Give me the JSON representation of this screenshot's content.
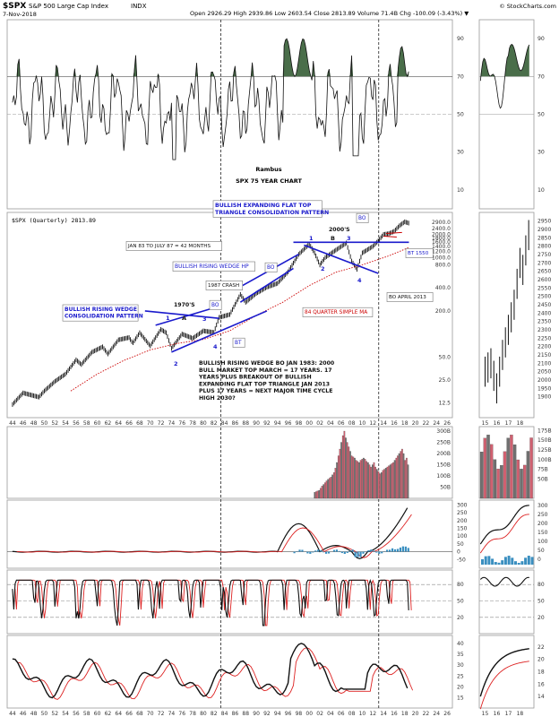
{
  "header": {
    "symbol": "$SPX",
    "name": "S&P 500 Large Cap Index",
    "exchange": "INDX",
    "date": "7-Nov-2018",
    "ohlc": "Open 2926.29  High 2939.86  Low 2603.54  Close 2813.89  Volume 71.4B  Chg -100.09 (-3.43%) ▼",
    "copyright": "© StockCharts.com"
  },
  "labels": {
    "author": "Rambus",
    "chart_title": "SPX 75 YEAR CHART",
    "price_legend": "$SPX (Quarterly) 2813.89",
    "triangle_title": "BULLISH EXPANDING FLAT TOP\nTRIANGLE CONSOLIDATION PATTERN",
    "wedge1_title": "BULLISH RISING WEDGE\nCONSOLIDATION PATTERN",
    "wedge2_title": "BULLISH RISING WEDGE HP",
    "jan83": "JAN 83 TO JULY 87 = 42 MONTHS",
    "crash": "1987 CRASH",
    "seventies": "1970'S",
    "twothousands": "2000'S",
    "bo_april": "BO APRIL 2013",
    "bt1550": "BT 1550",
    "ma_label": "84 QUARTER SIMPLE MA",
    "bo": "BO",
    "bt": "BT",
    "pt1": "1",
    "pt2": "2",
    "pt3": "3",
    "pt4": "4",
    "ptA": "A",
    "ptB": "B",
    "commentary": "BULLISH RISING WEDGE BO JAN 1983:  2000\nBULL MARKET TOP MARCH = 17 YEARS.  17\nYEARS PLUS BREAKOUT OF BULLISH\nEXPANDING FLAT TOP TRIANGLE  JAN 2013\nPLUS 17 YEARS = NEXT MAJOR TIME CYCLE\nHIGH 2030?"
  },
  "colors": {
    "price": "#111111",
    "ma": "#cc0000",
    "trendline": "#1a1acc",
    "rsi_fill": "#4a6e4a",
    "vol_red": "#d06070",
    "vol_grey": "#707070",
    "hist": "#3a8fc0",
    "signal": "#dd2222"
  },
  "chart_data": [
    {
      "type": "line",
      "name": "rsi",
      "yticks": [
        "90",
        "70",
        "50",
        "30",
        "10"
      ],
      "ylim": [
        0,
        100
      ]
    },
    {
      "type": "line",
      "name": "price",
      "scale": "log",
      "xticks": [
        "44",
        "46",
        "48",
        "50",
        "52",
        "54",
        "56",
        "58",
        "60",
        "62",
        "64",
        "66",
        "68",
        "70",
        "72",
        "74",
        "76",
        "78",
        "80",
        "82",
        "84",
        "86",
        "88",
        "90",
        "92",
        "94",
        "96",
        "98",
        "00",
        "02",
        "04",
        "06",
        "08",
        "10",
        "12",
        "14",
        "16",
        "18",
        "20",
        "22",
        "24",
        "26"
      ],
      "yticks": [
        "2900.0",
        "2400.0",
        "2000.0",
        "1800.0",
        "1600.0",
        "1400.0",
        "1200.0",
        "1000.0",
        "800.0",
        "400.0",
        "200.0",
        "50.0",
        "25.0",
        "12.5"
      ],
      "points": [
        [
          1944,
          12
        ],
        [
          1946,
          17
        ],
        [
          1949,
          15
        ],
        [
          1950,
          18
        ],
        [
          1952,
          24
        ],
        [
          1954,
          30
        ],
        [
          1956,
          46
        ],
        [
          1957,
          40
        ],
        [
          1959,
          58
        ],
        [
          1961,
          68
        ],
        [
          1962,
          55
        ],
        [
          1964,
          84
        ],
        [
          1966,
          90
        ],
        [
          1966.7,
          76
        ],
        [
          1968,
          104
        ],
        [
          1970,
          70
        ],
        [
          1972,
          115
        ],
        [
          1973,
          104
        ],
        [
          1974,
          65
        ],
        [
          1976,
          100
        ],
        [
          1978,
          88
        ],
        [
          1980,
          110
        ],
        [
          1982,
          105
        ],
        [
          1983,
          165
        ],
        [
          1985,
          180
        ],
        [
          1987,
          330
        ],
        [
          1988,
          260
        ],
        [
          1990,
          340
        ],
        [
          1992,
          410
        ],
        [
          1994,
          460
        ],
        [
          1996,
          650
        ],
        [
          1998,
          1100
        ],
        [
          2000,
          1500
        ],
        [
          2001,
          1150
        ],
        [
          2002,
          800
        ],
        [
          2003,
          1000
        ],
        [
          2005,
          1250
        ],
        [
          2007,
          1550
        ],
        [
          2008,
          900
        ],
        [
          2009,
          700
        ],
        [
          2010,
          1150
        ],
        [
          2012,
          1400
        ],
        [
          2013,
          1650
        ],
        [
          2014,
          2000
        ],
        [
          2015,
          2050
        ],
        [
          2016,
          2200
        ],
        [
          2017,
          2600
        ],
        [
          2018,
          2930
        ],
        [
          2018.8,
          2813
        ]
      ],
      "ma84": [
        [
          1955,
          18
        ],
        [
          1960,
          30
        ],
        [
          1965,
          45
        ],
        [
          1970,
          62
        ],
        [
          1975,
          75
        ],
        [
          1980,
          85
        ],
        [
          1985,
          110
        ],
        [
          1990,
          175
        ],
        [
          1995,
          260
        ],
        [
          2000,
          430
        ],
        [
          2005,
          640
        ],
        [
          2010,
          800
        ],
        [
          2015,
          1050
        ],
        [
          2018.8,
          1350
        ]
      ]
    },
    {
      "type": "line",
      "name": "price-zoom",
      "xticks": [
        "15",
        "16",
        "17",
        "18"
      ],
      "yticks": [
        "2950",
        "2900",
        "2850",
        "2800",
        "2750",
        "2700",
        "2650",
        "2600",
        "2550",
        "2500",
        "2450",
        "2400",
        "2350",
        "2300",
        "2250",
        "2200",
        "2150",
        "2100",
        "2050",
        "2000",
        "1950",
        "1900"
      ],
      "ylim": [
        1850,
        2970
      ]
    },
    {
      "type": "bar",
      "name": "volume",
      "yticks": [
        "300B",
        "250B",
        "200B",
        "150B",
        "100B",
        "50B"
      ],
      "zoom_yticks": [
        "175B",
        "150B",
        "125B",
        "100B",
        "75B",
        "50B"
      ],
      "values": [
        27,
        30,
        33,
        36,
        45,
        55,
        62,
        70,
        78,
        85,
        90,
        95,
        105,
        115,
        135,
        160,
        190,
        220,
        250,
        280,
        300,
        270,
        250,
        230,
        210,
        190,
        185,
        180,
        170,
        165,
        160,
        170,
        175,
        180,
        175,
        165,
        160,
        150,
        140,
        150,
        160,
        140,
        130,
        120,
        110,
        115,
        125,
        130,
        135,
        140,
        145,
        150,
        155,
        160,
        170,
        180,
        190,
        200,
        210,
        220,
        200,
        170,
        180,
        150
      ]
    },
    {
      "type": "line",
      "name": "macd",
      "yticks": [
        "300",
        "250",
        "200",
        "150",
        "100",
        "50",
        "0",
        "-50"
      ],
      "zoom_yticks": [
        "300",
        "250",
        "200",
        "150",
        "100",
        "50",
        "0"
      ]
    },
    {
      "type": "line",
      "name": "stochastic",
      "yticks": [
        "80",
        "50",
        "20"
      ]
    },
    {
      "type": "line",
      "name": "adx",
      "yticks": [
        "40",
        "35",
        "30",
        "25",
        "20",
        "15"
      ],
      "zoom_yticks": [
        "22",
        "20",
        "18",
        "16",
        "14"
      ]
    }
  ]
}
